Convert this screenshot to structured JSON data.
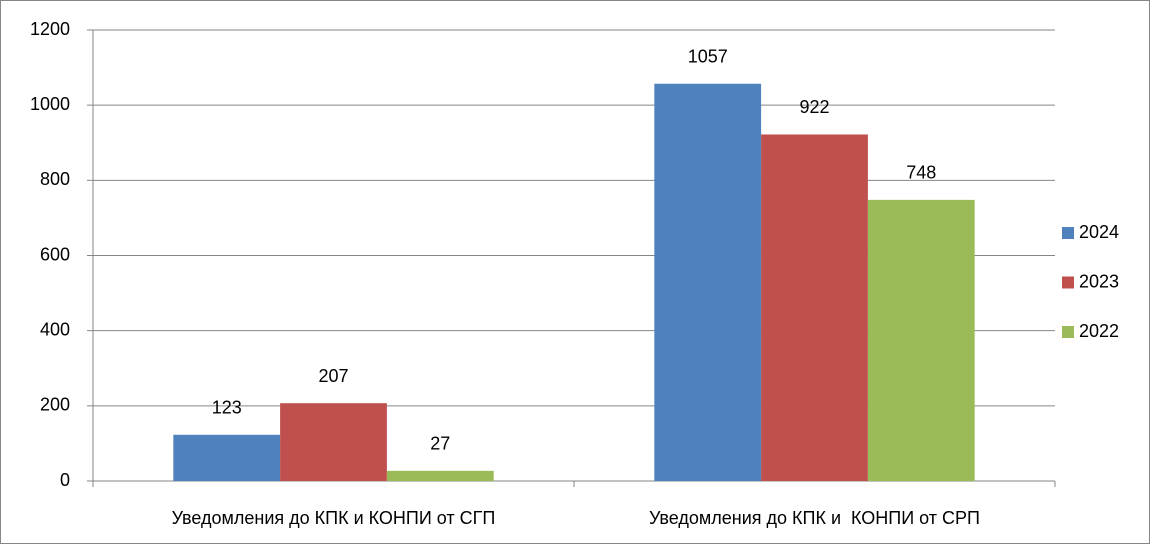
{
  "chart_data": {
    "type": "bar",
    "categories": [
      "Уведомления до КПК и КОНПИ от СГП",
      "Уведомления до КПК и  КОНПИ от СРП"
    ],
    "series": [
      {
        "name": "2024",
        "color": "#4f81bd",
        "values": [
          123,
          1057
        ]
      },
      {
        "name": "2023",
        "color": "#c0504d",
        "values": [
          207,
          922
        ]
      },
      {
        "name": "2022",
        "color": "#9bbb59",
        "values": [
          27,
          748
        ]
      }
    ],
    "ylim": [
      0,
      1200
    ],
    "yticks": [
      0,
      200,
      400,
      600,
      800,
      1000,
      1200
    ],
    "grid": true,
    "legend": "right",
    "data_labels": true
  }
}
